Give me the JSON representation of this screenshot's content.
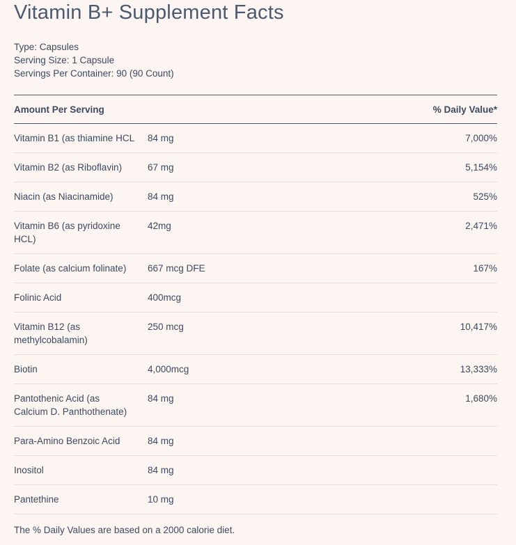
{
  "title": "Vitamin B+ Supplement Facts",
  "info": [
    "Type: Capsules",
    "Serving Size: 1 Capsule",
    "Servings Per Container: 90 (90 Count)"
  ],
  "table": {
    "header": [
      "Amount Per Serving",
      "% Daily Value*"
    ],
    "rows": [
      {
        "name": [
          "Vitamin B1 (as thiamine HCL"
        ],
        "amount": "84 mg",
        "dv": "7,000%"
      },
      {
        "name": [
          "Vitamin B2 (as Riboflavin)"
        ],
        "amount": "67 mg",
        "dv": "5,154%"
      },
      {
        "name": [
          "Niacin (as Niacinamide)"
        ],
        "amount": "84 mg",
        "dv": "525%"
      },
      {
        "name": [
          "Vitamin B6 (as pyridoxine",
          "HCL)"
        ],
        "amount": "42mg",
        "dv": "2,471%"
      },
      {
        "name": [
          "Folate (as calcium folinate)"
        ],
        "amount": "667 mcg DFE",
        "dv": "167%"
      },
      {
        "name": [
          "Folinic Acid"
        ],
        "amount": "400mcg"
      },
      {
        "name": [
          "Vitamin B12 (as",
          "methylcobalamin)"
        ],
        "amount": "250 mcg",
        "dv": "10,417%"
      },
      {
        "name": [
          "Biotin"
        ],
        "amount": "4,000mcg",
        "dv": "13,333%"
      },
      {
        "name": [
          "Pantothenic Acid (as",
          "Calcium D. Panthothenate)"
        ],
        "amount": "84 mg",
        "dv": "1,680%"
      },
      {
        "name": [
          "Para-Amino Benzoic Acid"
        ],
        "amount": "84 mg"
      },
      {
        "name": [
          "Inositol"
        ],
        "amount": "84 mg"
      },
      {
        "name": [
          "Pantethine"
        ],
        "amount": "10 mg"
      }
    ]
  },
  "footnote": "The % Daily Values are based on a 2000 calorie diet."
}
